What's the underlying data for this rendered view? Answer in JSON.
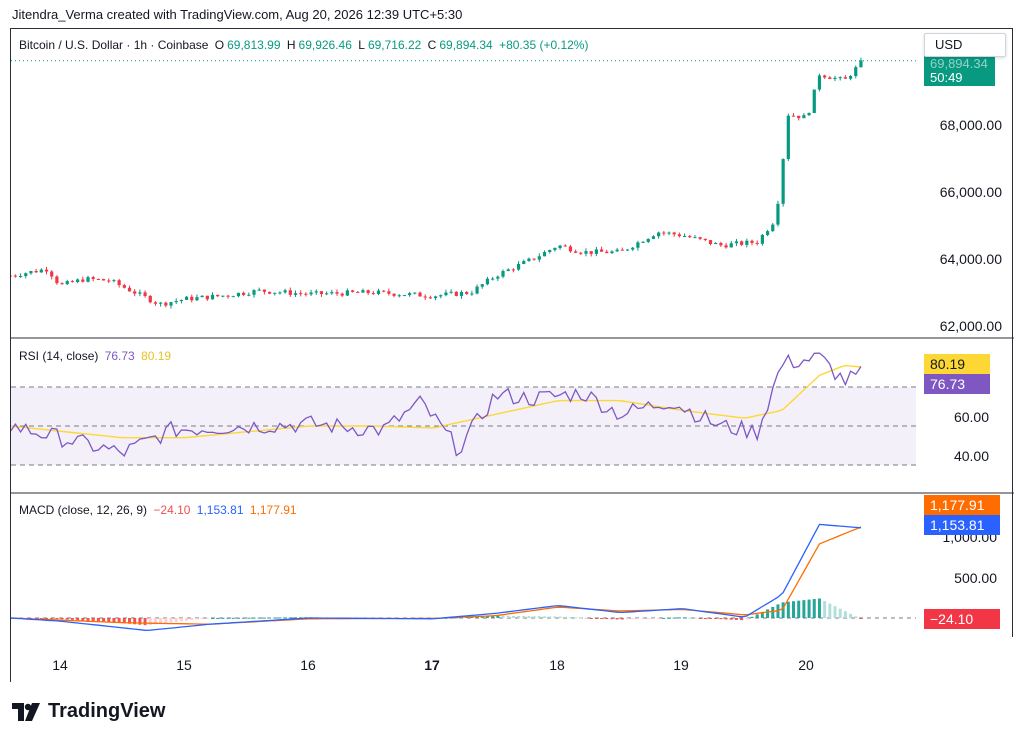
{
  "header": {
    "credit": "Jitendra_Verma created with TradingView.com, Aug 20, 2026 12:39 UTC+5:30"
  },
  "main": {
    "symbol": "Bitcoin / U.S. Dollar · 1h · Coinbase",
    "o_label": "O",
    "o_value": "69,813.99",
    "h_label": "H",
    "h_value": "69,926.46",
    "l_label": "L",
    "l_value": "69,716.22",
    "c_label": "C",
    "c_value": "69,894.34",
    "change": "+80.35 (+0.12%)",
    "price_pill": "69,894.34",
    "countdown": "50:49",
    "currency": "USD",
    "y_ticks": [
      "68,000.00",
      "66,000.00",
      "64,000.00",
      "62,000.00"
    ]
  },
  "rsi": {
    "label": "RSI (14, close)",
    "rsi_value": "76.73",
    "ma_value": "80.19",
    "y_ticks": [
      "60.00",
      "40.00"
    ]
  },
  "macd": {
    "label": "MACD (close, 12, 26, 9)",
    "hist_value": "−24.10",
    "macd_value": "1,153.81",
    "signal_value": "1,177.91",
    "y_ticks": [
      "1,000.00",
      "500.00"
    ]
  },
  "x_ticks": [
    "14",
    "15",
    "16",
    "17",
    "18",
    "19",
    "20"
  ],
  "footer": {
    "brand": "TradingView"
  },
  "colors": {
    "up": "#26a69a",
    "down": "#ef5350",
    "up_candle": "#089981",
    "down_candle": "#f23645",
    "rsi": "#7e57c2",
    "rsi_ma": "#fdd835",
    "macd": "#2962ff",
    "signal": "#ff6d00",
    "price_pill": "#089981"
  },
  "chart_data": [
    {
      "type": "candlestick",
      "title": "Bitcoin / U.S. Dollar · 1h · Coinbase",
      "ylabel": "USD",
      "ylim": [
        61800,
        70000
      ],
      "x_ticks": [
        "14",
        "15",
        "16",
        "17",
        "18",
        "19",
        "20"
      ],
      "close_series": [
        {
          "day": 13.6,
          "close": 63500
        },
        {
          "day": 13.9,
          "close": 63700
        },
        {
          "day": 14.0,
          "close": 63200
        },
        {
          "day": 14.2,
          "close": 63400
        },
        {
          "day": 14.4,
          "close": 63350
        },
        {
          "day": 14.6,
          "close": 63000
        },
        {
          "day": 14.8,
          "close": 62650
        },
        {
          "day": 15.0,
          "close": 62800
        },
        {
          "day": 15.3,
          "close": 62900
        },
        {
          "day": 15.6,
          "close": 63050
        },
        {
          "day": 16.0,
          "close": 62950
        },
        {
          "day": 16.5,
          "close": 63000
        },
        {
          "day": 17.0,
          "close": 62900
        },
        {
          "day": 17.3,
          "close": 63000
        },
        {
          "day": 17.5,
          "close": 63500
        },
        {
          "day": 17.8,
          "close": 64000
        },
        {
          "day": 18.0,
          "close": 64400
        },
        {
          "day": 18.2,
          "close": 64200
        },
        {
          "day": 18.5,
          "close": 64200
        },
        {
          "day": 18.8,
          "close": 64800
        },
        {
          "day": 19.0,
          "close": 64700
        },
        {
          "day": 19.3,
          "close": 64400
        },
        {
          "day": 19.6,
          "close": 64500
        },
        {
          "day": 19.75,
          "close": 65200
        },
        {
          "day": 19.85,
          "close": 68300
        },
        {
          "day": 20.0,
          "close": 68200
        },
        {
          "day": 20.1,
          "close": 69500
        },
        {
          "day": 20.3,
          "close": 69300
        },
        {
          "day": 20.45,
          "close": 69894.34
        }
      ],
      "last_close": 69894.34
    },
    {
      "type": "line",
      "title": "RSI (14, close)",
      "ylim": [
        30,
        90
      ],
      "levels": [
        70,
        50,
        30
      ],
      "series": [
        {
          "name": "RSI",
          "values_by_day": [
            [
              13.6,
              50
            ],
            [
              14.0,
              44
            ],
            [
              14.5,
              36
            ],
            [
              14.9,
              48
            ],
            [
              15.5,
              50
            ],
            [
              16.0,
              51
            ],
            [
              16.6,
              48
            ],
            [
              16.9,
              62
            ],
            [
              17.2,
              38
            ],
            [
              17.5,
              66
            ],
            [
              17.8,
              64
            ],
            [
              18.2,
              67
            ],
            [
              18.5,
              56
            ],
            [
              18.9,
              63
            ],
            [
              19.3,
              50
            ],
            [
              19.6,
              47
            ],
            [
              19.8,
              82
            ],
            [
              20.1,
              85
            ],
            [
              20.3,
              73
            ],
            [
              20.45,
              76.73
            ]
          ]
        },
        {
          "name": "RSI-based MA",
          "values_by_day": [
            [
              13.6,
              50
            ],
            [
              14.5,
              44
            ],
            [
              15.0,
              44
            ],
            [
              15.5,
              47
            ],
            [
              16.0,
              50
            ],
            [
              16.5,
              50
            ],
            [
              17.0,
              49
            ],
            [
              17.5,
              56
            ],
            [
              18.0,
              63
            ],
            [
              18.5,
              63
            ],
            [
              19.0,
              58
            ],
            [
              19.5,
              54
            ],
            [
              19.8,
              58
            ],
            [
              20.1,
              76
            ],
            [
              20.3,
              81
            ],
            [
              20.45,
              80.19
            ]
          ]
        }
      ],
      "last_values": {
        "RSI": 76.73,
        "MA": 80.19
      }
    },
    {
      "type": "line",
      "title": "MACD (close, 12, 26, 9)",
      "ylim": [
        -200,
        1300
      ],
      "series": [
        {
          "name": "MACD",
          "values_by_day": [
            [
              13.6,
              0
            ],
            [
              14.0,
              -40
            ],
            [
              14.7,
              -160
            ],
            [
              15.2,
              -80
            ],
            [
              16.0,
              0
            ],
            [
              17.0,
              -10
            ],
            [
              17.5,
              60
            ],
            [
              18.0,
              160
            ],
            [
              18.5,
              70
            ],
            [
              19.0,
              120
            ],
            [
              19.5,
              10
            ],
            [
              19.8,
              300
            ],
            [
              20.1,
              1200
            ],
            [
              20.45,
              1153.81
            ]
          ]
        },
        {
          "name": "Signal",
          "values_by_day": [
            [
              13.6,
              0
            ],
            [
              14.5,
              -60
            ],
            [
              15.2,
              -80
            ],
            [
              16.0,
              -10
            ],
            [
              17.0,
              -5
            ],
            [
              17.5,
              30
            ],
            [
              18.0,
              140
            ],
            [
              18.5,
              90
            ],
            [
              19.0,
              110
            ],
            [
              19.5,
              40
            ],
            [
              19.8,
              100
            ],
            [
              20.1,
              950
            ],
            [
              20.45,
              1177.91
            ]
          ]
        }
      ],
      "last_values": {
        "histogram": -24.1,
        "MACD": 1153.81,
        "Signal": 1177.91
      }
    }
  ]
}
